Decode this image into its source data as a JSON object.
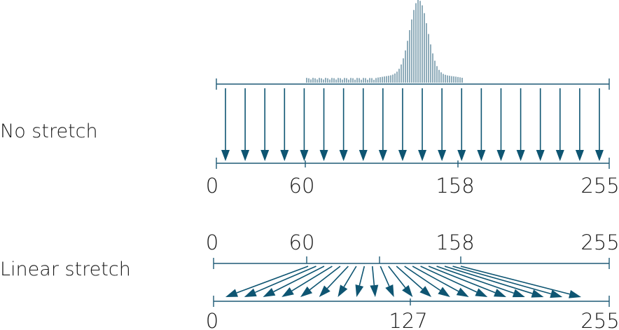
{
  "sections": {
    "no_stretch": {
      "label": "No stretch",
      "input_ticks": [],
      "output_ticks": [
        "0",
        "60",
        "158",
        "255"
      ]
    },
    "linear_stretch": {
      "label": "Linear stretch",
      "input_ticks": [
        "0",
        "60",
        "158",
        "255"
      ],
      "output_ticks": [
        "0",
        "127",
        "255"
      ]
    }
  },
  "colors": {
    "accent": "#0e5572",
    "axis": "#1f5a76",
    "text": "#1a1a1a"
  },
  "chart_data": {
    "type": "bar",
    "x_range": [
      0,
      255
    ],
    "histogram_range": [
      60,
      158
    ]
  }
}
